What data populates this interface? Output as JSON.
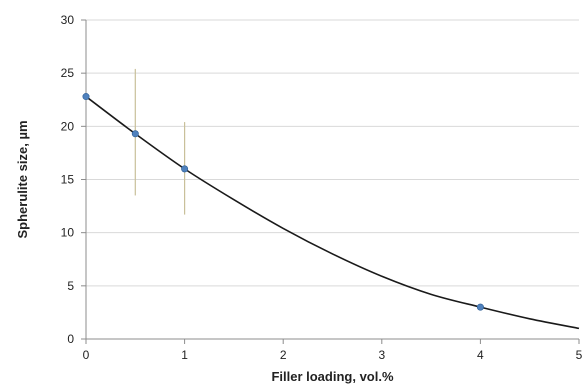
{
  "chart_data": {
    "type": "scatter",
    "title": "",
    "xlabel": "Filler loading, vol.%",
    "ylabel": "Spherulite size, µm",
    "xlim": [
      0,
      5
    ],
    "ylim": [
      0,
      30
    ],
    "x_ticks": [
      "0",
      "1",
      "2",
      "3",
      "4",
      "5"
    ],
    "y_ticks": [
      "0",
      "5",
      "10",
      "15",
      "20",
      "25",
      "30"
    ],
    "grid": "horizontal",
    "legend": "none",
    "series": [
      {
        "x": [
          0,
          0.5,
          1,
          4
        ],
        "y": [
          22.8,
          19.3,
          16.0,
          3.0
        ],
        "error_low": [
          null,
          13.5,
          11.7,
          null
        ],
        "error_high": [
          null,
          25.4,
          20.4,
          null
        ]
      }
    ],
    "trendline": {
      "x": [
        0,
        0.5,
        1,
        1.5,
        2,
        2.5,
        3,
        3.5,
        4,
        4.5,
        5
      ],
      "y": [
        22.8,
        19.3,
        16.0,
        13.1,
        10.4,
        8.0,
        5.9,
        4.2,
        3.0,
        1.9,
        1.0
      ]
    },
    "colors": {
      "marker": "#4f81bd",
      "line": "#1a1a1a",
      "error_bar": "#c9c09a",
      "grid": "#d9d9d9",
      "axis": "#8c8c8c"
    }
  }
}
